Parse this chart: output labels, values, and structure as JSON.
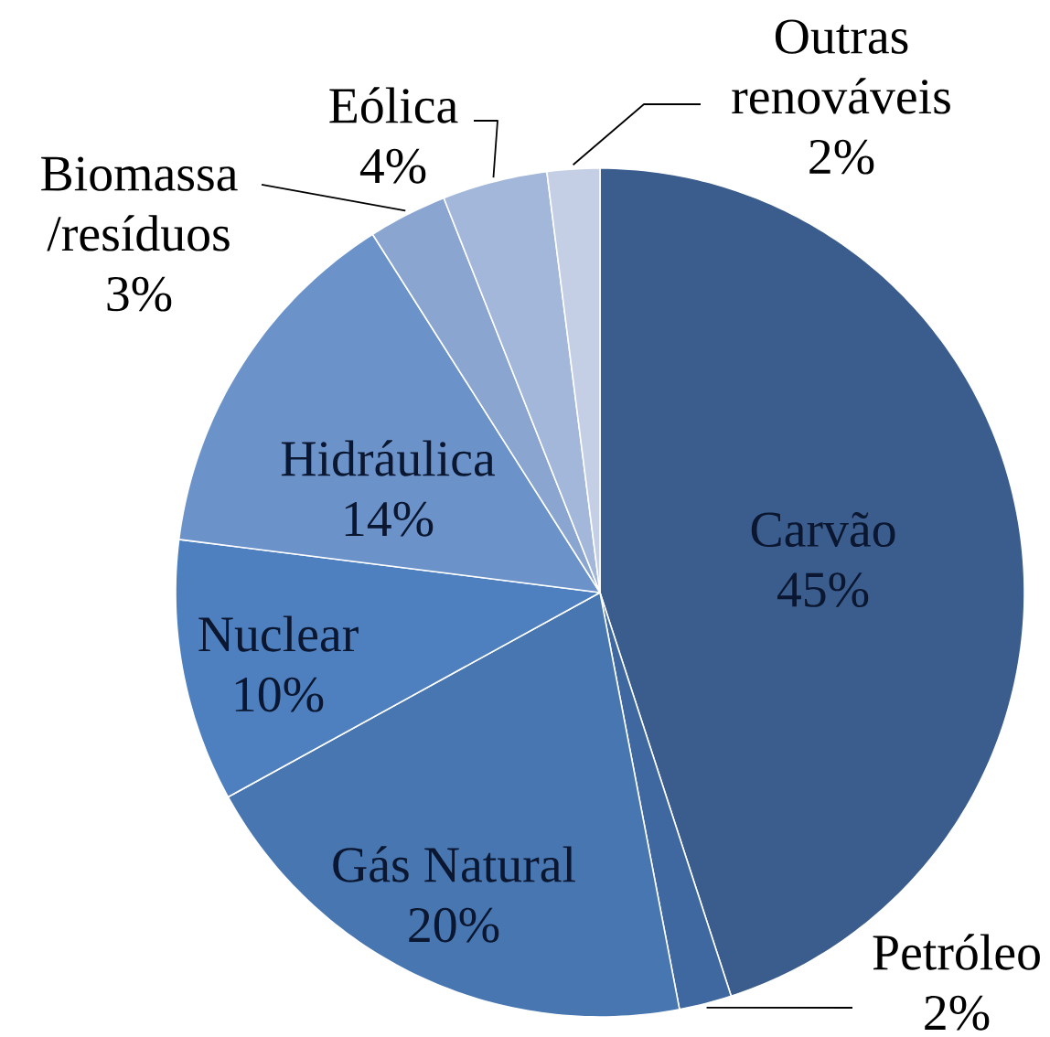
{
  "chart_data": {
    "type": "pie",
    "categories": [
      "Carvão",
      "Petróleo",
      "Gás Natural",
      "Nuclear",
      "Hidráulica",
      "Biomassa /resíduos",
      "Eólica",
      "Outras renováveis"
    ],
    "values": [
      45,
      2,
      20,
      10,
      14,
      3,
      4,
      2
    ],
    "value_labels": [
      "45%",
      "2%",
      "20%",
      "10%",
      "14%",
      "3%",
      "4%",
      "2%"
    ],
    "colors": [
      "#3a5d8d",
      "#3f68a1",
      "#4776b1",
      "#4e7fbe",
      "#6b93ca",
      "#8aa5d0",
      "#a3b7da",
      "#c4cfe6"
    ]
  }
}
